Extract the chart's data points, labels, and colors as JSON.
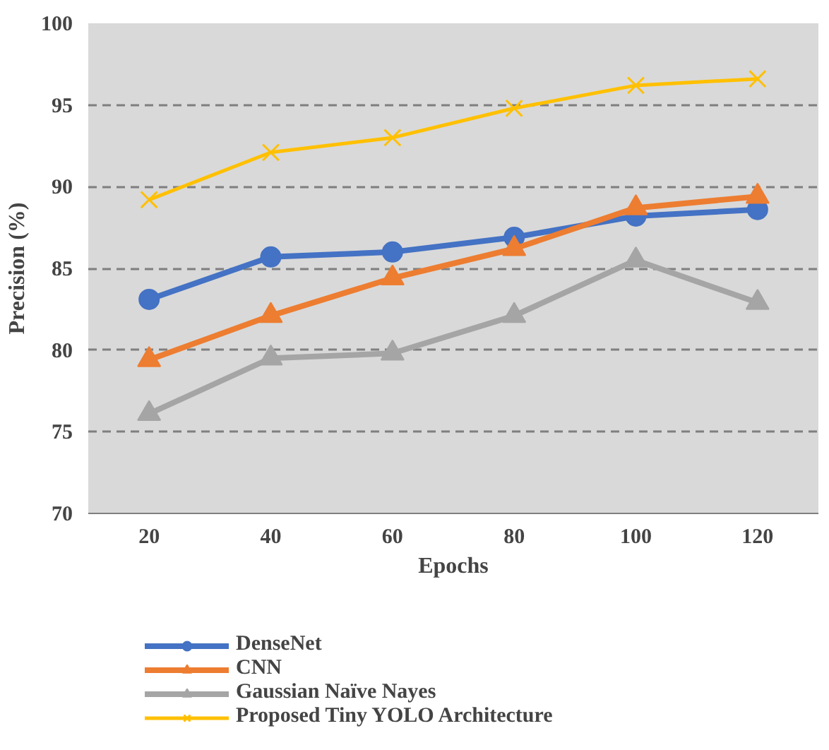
{
  "chart_data": {
    "type": "line",
    "xlabel": "Epochs",
    "ylabel": "Precision (%)",
    "categories": [
      "20",
      "40",
      "60",
      "80",
      "100",
      "120"
    ],
    "ylim": [
      70,
      100
    ],
    "yticks": [
      70,
      75,
      80,
      85,
      90,
      95,
      100
    ],
    "grid": "y",
    "legend": "bottom",
    "series": [
      {
        "name": "DenseNet",
        "color": "#4472c4",
        "marker": "circle",
        "values": [
          83.1,
          85.7,
          86.0,
          86.9,
          88.2,
          88.6
        ]
      },
      {
        "name": "CNN",
        "color": "#ed7d31",
        "marker": "triangle",
        "values": [
          79.4,
          82.1,
          84.4,
          86.2,
          88.7,
          89.4
        ]
      },
      {
        "name": "Gaussian Naïve Nayes",
        "color": "#a5a5a5",
        "marker": "triangle",
        "values": [
          76.1,
          79.5,
          79.8,
          82.1,
          85.5,
          82.9
        ]
      },
      {
        "name": "Proposed Tiny YOLO Architecture",
        "color": "#ffc000",
        "marker": "cross",
        "values": [
          89.2,
          92.1,
          93.0,
          94.8,
          96.2,
          96.6
        ]
      }
    ]
  }
}
